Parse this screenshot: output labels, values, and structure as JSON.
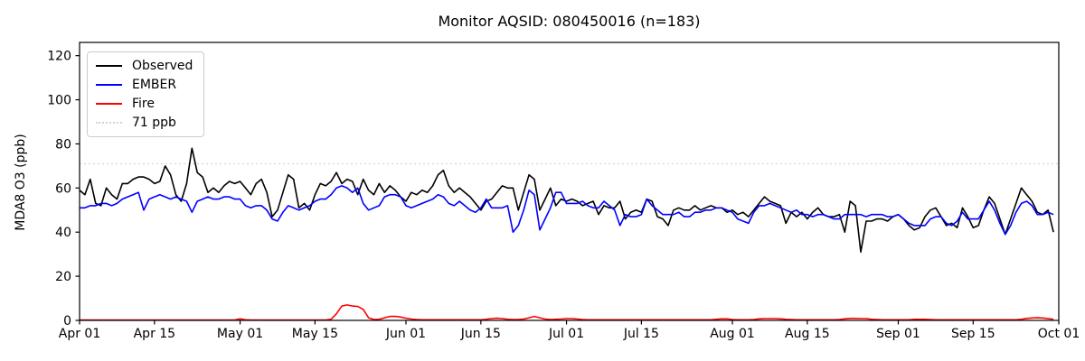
{
  "title": "Monitor AQSID: 080450016 (n=183)",
  "legend": {
    "items": [
      {
        "label": "Observed",
        "color": "#000000",
        "style": "solid"
      },
      {
        "label": "EMBER",
        "color": "#0000ff",
        "style": "solid"
      },
      {
        "label": "Fire",
        "color": "#ff0000",
        "style": "solid"
      },
      {
        "label": "71 ppb",
        "color": "#d3d3d3",
        "style": "dotted"
      }
    ]
  },
  "chart_data": {
    "type": "line",
    "title": "Monitor AQSID: 080450016 (n=183)",
    "xlabel": "",
    "ylabel": "MDA8 O3 (ppb)",
    "ylim": [
      0,
      126
    ],
    "yticks": [
      0,
      20,
      40,
      60,
      80,
      100,
      120
    ],
    "x_unit": "day index from Apr 01",
    "n_points": 183,
    "xtick_labels": [
      "Apr 01",
      "Apr 15",
      "May 01",
      "May 15",
      "Jun 01",
      "Jun 15",
      "Jul 01",
      "Jul 15",
      "Aug 01",
      "Aug 15",
      "Sep 01",
      "Sep 15",
      "Oct 01"
    ],
    "xtick_days": [
      0,
      14,
      30,
      44,
      61,
      75,
      91,
      105,
      122,
      136,
      153,
      167,
      183
    ],
    "grid": false,
    "legend_position": "upper left",
    "threshold": {
      "label": "71 ppb",
      "value": 71,
      "color": "#d3d3d3",
      "style": "dotted"
    },
    "series": [
      {
        "name": "Observed",
        "color": "#000000",
        "values": [
          59,
          57,
          64,
          53,
          52,
          60,
          57,
          55,
          62,
          62,
          64,
          65,
          65,
          64,
          62,
          63,
          70,
          66,
          57,
          54,
          62,
          78,
          67,
          65,
          58,
          60,
          58,
          61,
          63,
          62,
          63,
          60,
          57,
          62,
          64,
          58,
          47,
          50,
          58,
          66,
          64,
          51,
          53,
          50,
          57,
          62,
          61,
          63,
          67,
          62,
          64,
          63,
          57,
          64,
          59,
          57,
          62,
          58,
          61,
          59,
          56,
          54,
          58,
          57,
          59,
          58,
          61,
          66,
          68,
          61,
          58,
          60,
          58,
          56,
          53,
          50,
          54,
          55,
          58,
          61,
          60,
          60,
          50,
          58,
          66,
          64,
          50,
          55,
          60,
          52,
          55,
          54,
          55,
          54,
          52,
          53,
          54,
          48,
          52,
          51,
          51,
          54,
          46,
          49,
          50,
          49,
          55,
          54,
          47,
          46,
          43,
          50,
          51,
          50,
          50,
          52,
          50,
          51,
          52,
          51,
          51,
          49,
          50,
          48,
          49,
          47,
          50,
          53,
          56,
          54,
          53,
          52,
          44,
          49,
          47,
          49,
          46,
          49,
          51,
          48,
          47,
          47,
          48,
          40,
          54,
          52,
          31,
          45,
          45,
          46,
          46,
          45,
          47,
          48,
          46,
          43,
          41,
          42,
          47,
          50,
          51,
          47,
          43,
          44,
          42,
          51,
          47,
          42,
          43,
          50,
          56,
          53,
          46,
          39,
          46,
          53,
          60,
          57,
          54,
          49,
          48,
          50,
          40
        ]
      },
      {
        "name": "EMBER",
        "color": "#0000ff",
        "values": [
          51,
          51,
          52,
          52,
          53,
          53,
          52,
          53,
          55,
          56,
          57,
          58,
          50,
          55,
          56,
          57,
          56,
          55,
          56,
          55,
          54,
          49,
          54,
          55,
          56,
          55,
          55,
          56,
          56,
          55,
          55,
          52,
          51,
          52,
          52,
          50,
          46,
          45,
          49,
          52,
          51,
          50,
          51,
          52,
          54,
          55,
          55,
          57,
          60,
          61,
          60,
          58,
          60,
          53,
          50,
          51,
          52,
          56,
          57,
          57,
          56,
          52,
          51,
          52,
          53,
          54,
          55,
          57,
          56,
          53,
          52,
          54,
          52,
          50,
          49,
          51,
          55,
          51,
          51,
          51,
          52,
          40,
          43,
          50,
          59,
          57,
          41,
          46,
          51,
          58,
          58,
          53,
          53,
          53,
          54,
          52,
          51,
          51,
          54,
          52,
          50,
          43,
          48,
          47,
          47,
          48,
          55,
          52,
          50,
          48,
          48,
          48,
          49,
          47,
          47,
          49,
          49,
          50,
          50,
          51,
          51,
          50,
          49,
          46,
          45,
          44,
          49,
          52,
          52,
          53,
          52,
          51,
          50,
          49,
          50,
          48,
          48,
          47,
          48,
          48,
          47,
          46,
          46,
          48,
          48,
          48,
          48,
          47,
          48,
          48,
          48,
          47,
          47,
          48,
          46,
          44,
          43,
          43,
          43,
          46,
          47,
          47,
          44,
          43,
          45,
          49,
          46,
          46,
          46,
          50,
          54,
          50,
          44,
          39,
          43,
          49,
          53,
          54,
          52,
          48,
          48,
          49,
          48
        ]
      },
      {
        "name": "Fire",
        "color": "#ff0000",
        "values": [
          0.2,
          0.2,
          0.2,
          0.2,
          0.2,
          0.2,
          0.2,
          0.2,
          0.2,
          0.2,
          0.2,
          0.2,
          0.2,
          0.2,
          0.2,
          0.2,
          0.2,
          0.2,
          0.2,
          0.2,
          0.2,
          0.2,
          0.2,
          0.2,
          0.2,
          0.2,
          0.2,
          0.2,
          0.2,
          0.2,
          0.7,
          0.3,
          0.2,
          0.2,
          0.2,
          0.2,
          0.2,
          0.2,
          0.2,
          0.2,
          0.2,
          0.2,
          0.2,
          0.2,
          0.2,
          0.2,
          0.2,
          0.5,
          3,
          6.5,
          7,
          6.5,
          6.3,
          5,
          1.2,
          0.4,
          0.5,
          1.2,
          1.8,
          1.8,
          1.5,
          1,
          0.6,
          0.4,
          0.3,
          0.3,
          0.3,
          0.3,
          0.3,
          0.3,
          0.3,
          0.3,
          0.3,
          0.3,
          0.3,
          0.3,
          0.5,
          0.8,
          1,
          0.8,
          0.5,
          0.4,
          0.4,
          0.6,
          1.2,
          1.8,
          1.2,
          0.6,
          0.4,
          0.5,
          0.6,
          0.8,
          0.8,
          0.6,
          0.4,
          0.3,
          0.3,
          0.3,
          0.3,
          0.3,
          0.3,
          0.3,
          0.3,
          0.3,
          0.3,
          0.3,
          0.3,
          0.3,
          0.3,
          0.3,
          0.3,
          0.3,
          0.3,
          0.3,
          0.3,
          0.3,
          0.3,
          0.3,
          0.3,
          0.5,
          0.7,
          0.7,
          0.4,
          0.3,
          0.3,
          0.3,
          0.4,
          0.7,
          0.8,
          0.8,
          0.8,
          0.7,
          0.5,
          0.4,
          0.3,
          0.3,
          0.3,
          0.3,
          0.3,
          0.3,
          0.3,
          0.3,
          0.4,
          0.7,
          0.9,
          0.9,
          0.8,
          0.8,
          0.5,
          0.4,
          0.3,
          0.3,
          0.3,
          0.3,
          0.3,
          0.3,
          0.5,
          0.5,
          0.5,
          0.4,
          0.3,
          0.3,
          0.3,
          0.3,
          0.3,
          0.3,
          0.3,
          0.3,
          0.3,
          0.3,
          0.3,
          0.3,
          0.3,
          0.3,
          0.3,
          0.3,
          0.5,
          0.9,
          1.1,
          1.2,
          1.1,
          0.8,
          0.5
        ]
      }
    ]
  }
}
